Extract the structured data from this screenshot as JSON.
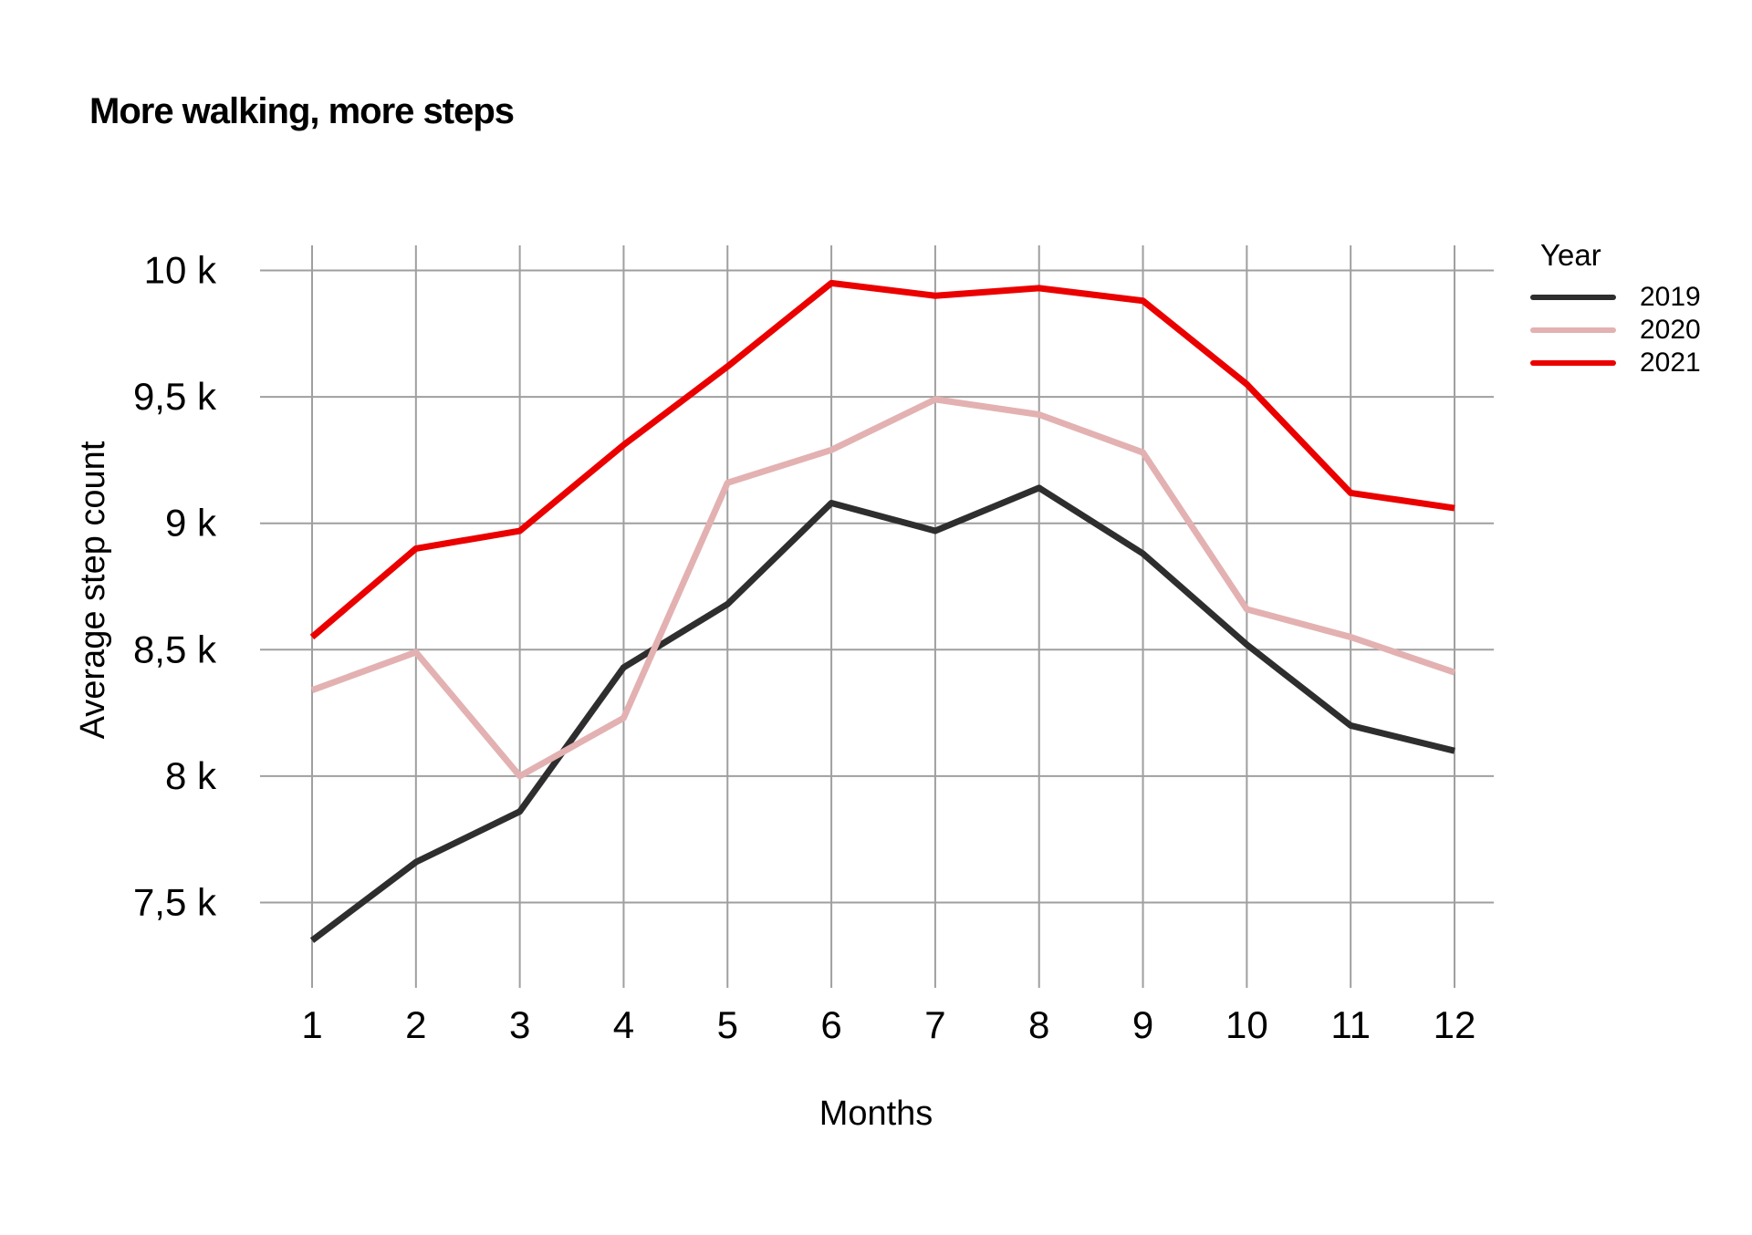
{
  "chart_data": {
    "type": "line",
    "title": "More walking, more steps",
    "xlabel": "Months",
    "ylabel": "Average step count",
    "x": [
      1,
      2,
      3,
      4,
      5,
      6,
      7,
      8,
      9,
      10,
      11,
      12
    ],
    "series": [
      {
        "name": "2019",
        "color": "#2e2e2e",
        "values": [
          7350,
          7660,
          7860,
          8430,
          8680,
          9080,
          8970,
          9140,
          8880,
          8520,
          8200,
          8100
        ]
      },
      {
        "name": "2020",
        "color": "#e3b1b1",
        "values": [
          8340,
          8490,
          8000,
          8230,
          9160,
          9290,
          9490,
          9430,
          9280,
          8660,
          8550,
          8410
        ]
      },
      {
        "name": "2021",
        "color": "#eb0000",
        "values": [
          8550,
          8900,
          8970,
          9310,
          9620,
          9950,
          9900,
          9930,
          9880,
          9550,
          9120,
          9060
        ]
      }
    ],
    "legend": {
      "title": "Year",
      "position": "right"
    },
    "y_ticks": [
      {
        "value": 7500,
        "label": "7,5 k"
      },
      {
        "value": 8000,
        "label": "8 k"
      },
      {
        "value": 8500,
        "label": "8,5 k"
      },
      {
        "value": 9000,
        "label": "9 k"
      },
      {
        "value": 9500,
        "label": "9,5 k"
      },
      {
        "value": 10000,
        "label": "10 k"
      }
    ],
    "ylim": [
      7160,
      10100
    ],
    "grid": true
  },
  "colors": {
    "grid": "#9f9f9f",
    "text": "#000000",
    "background": "#ffffff"
  }
}
